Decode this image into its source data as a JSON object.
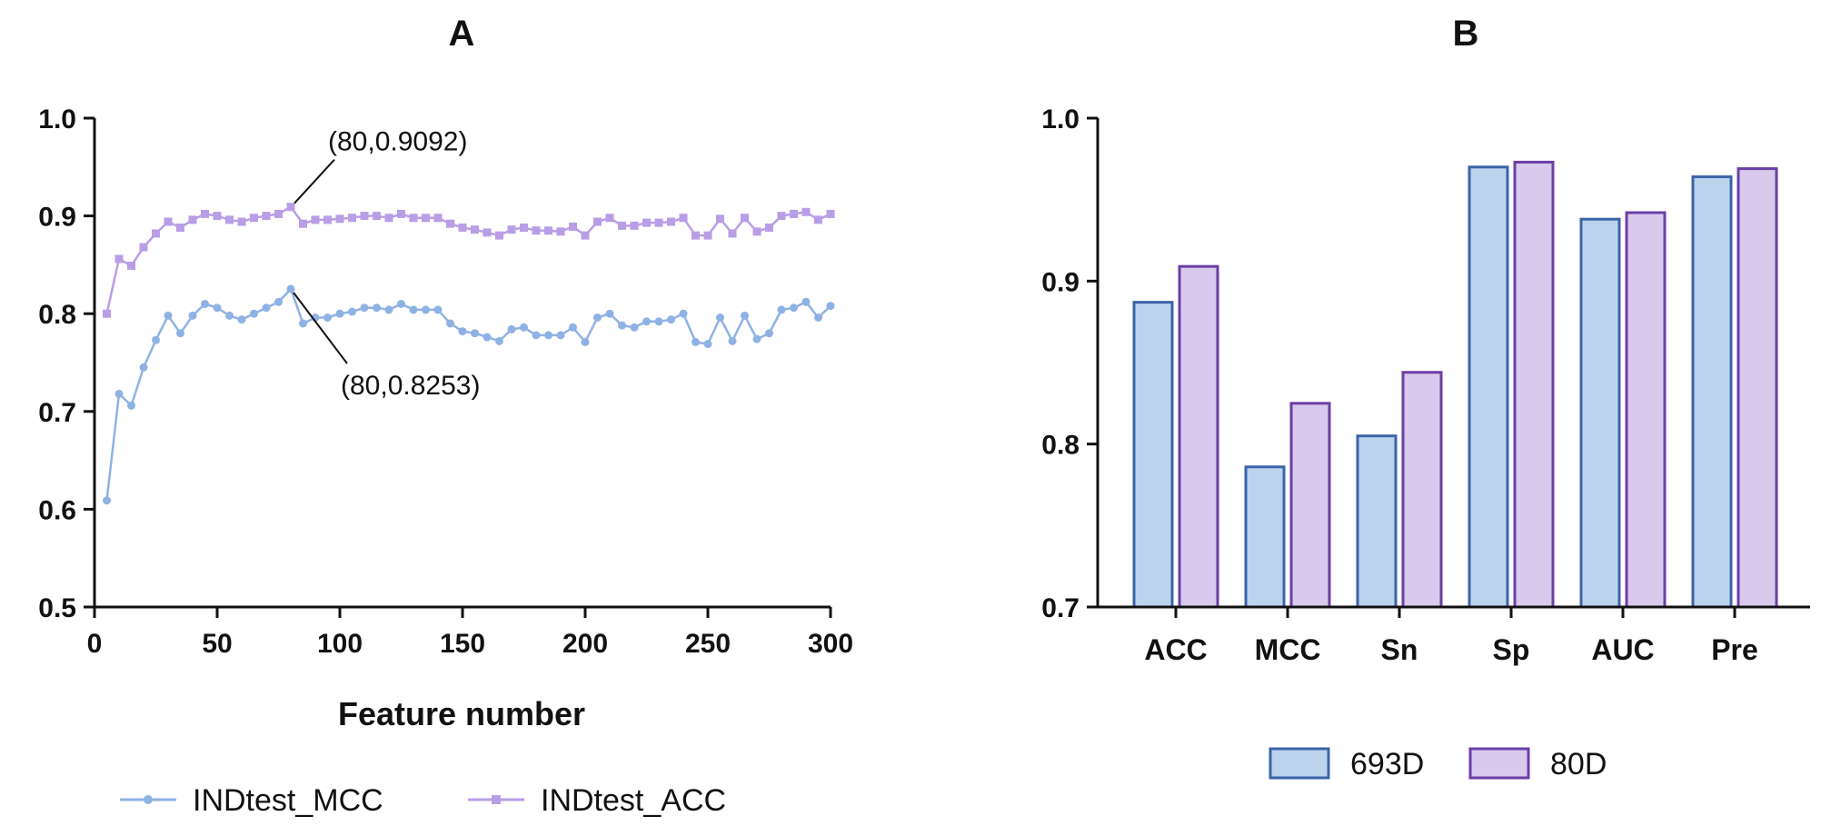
{
  "chart_data": [
    {
      "type": "line",
      "panel_label": "A",
      "xlabel": "Feature number",
      "ylabel": "",
      "xlim": [
        0,
        300
      ],
      "ylim": [
        0.5,
        1.0
      ],
      "xticks": [
        "0",
        "50",
        "100",
        "150",
        "200",
        "250",
        "300"
      ],
      "yticks": [
        "0.5",
        "0.6",
        "0.7",
        "0.8",
        "0.9",
        "1.0"
      ],
      "x": [
        5,
        10,
        15,
        20,
        25,
        30,
        35,
        40,
        45,
        50,
        55,
        60,
        65,
        70,
        75,
        80,
        85,
        90,
        95,
        100,
        105,
        110,
        115,
        120,
        125,
        130,
        135,
        140,
        145,
        150,
        155,
        160,
        165,
        170,
        175,
        180,
        185,
        190,
        195,
        200,
        205,
        210,
        215,
        220,
        225,
        230,
        235,
        240,
        245,
        250,
        255,
        260,
        265,
        270,
        275,
        280,
        285,
        290,
        295,
        300
      ],
      "series": [
        {
          "name": "INDtest_MCC",
          "color": "#8fb2e4",
          "marker": "circle",
          "values": [
            0.609,
            0.718,
            0.706,
            0.745,
            0.773,
            0.798,
            0.78,
            0.798,
            0.81,
            0.806,
            0.798,
            0.794,
            0.8,
            0.806,
            0.812,
            0.8253,
            0.79,
            0.796,
            0.796,
            0.8,
            0.802,
            0.806,
            0.806,
            0.804,
            0.81,
            0.804,
            0.804,
            0.804,
            0.79,
            0.782,
            0.78,
            0.776,
            0.772,
            0.784,
            0.786,
            0.778,
            0.778,
            0.778,
            0.786,
            0.771,
            0.796,
            0.8,
            0.788,
            0.786,
            0.792,
            0.792,
            0.794,
            0.8,
            0.771,
            0.769,
            0.796,
            0.772,
            0.798,
            0.774,
            0.78,
            0.804,
            0.806,
            0.812,
            0.796,
            0.808
          ]
        },
        {
          "name": "INDtest_ACC",
          "color": "#b99ee6",
          "marker": "square",
          "values": [
            0.8,
            0.856,
            0.849,
            0.868,
            0.882,
            0.894,
            0.888,
            0.896,
            0.902,
            0.9,
            0.896,
            0.894,
            0.898,
            0.9,
            0.902,
            0.9092,
            0.892,
            0.896,
            0.896,
            0.897,
            0.898,
            0.9,
            0.9,
            0.898,
            0.902,
            0.898,
            0.898,
            0.898,
            0.892,
            0.888,
            0.886,
            0.883,
            0.88,
            0.886,
            0.888,
            0.885,
            0.885,
            0.884,
            0.889,
            0.88,
            0.894,
            0.898,
            0.89,
            0.89,
            0.893,
            0.893,
            0.894,
            0.898,
            0.88,
            0.88,
            0.897,
            0.882,
            0.898,
            0.884,
            0.888,
            0.9,
            0.902,
            0.904,
            0.896,
            0.902
          ]
        }
      ],
      "annotations": [
        {
          "text": "(80,0.9092)",
          "x": 80,
          "y": 0.9092
        },
        {
          "text": "(80,0.8253)",
          "x": 80,
          "y": 0.8253
        }
      ],
      "legend": "bottom"
    },
    {
      "type": "bar",
      "panel_label": "B",
      "categories": [
        "ACC",
        "MCC",
        "Sn",
        "Sp",
        "AUC",
        "Pre"
      ],
      "ylim": [
        0.7,
        1.0
      ],
      "yticks": [
        "0.7",
        "0.8",
        "0.9",
        "1.0"
      ],
      "series": [
        {
          "name": "693D",
          "fill": "#bcd3ed",
          "stroke": "#3b64a8",
          "values": [
            0.887,
            0.786,
            0.805,
            0.97,
            0.938,
            0.964
          ]
        },
        {
          "name": "80D",
          "fill": "#d9c9ec",
          "stroke": "#6a3fa6",
          "values": [
            0.909,
            0.825,
            0.844,
            0.973,
            0.942,
            0.969
          ]
        }
      ],
      "legend": "bottom"
    }
  ]
}
